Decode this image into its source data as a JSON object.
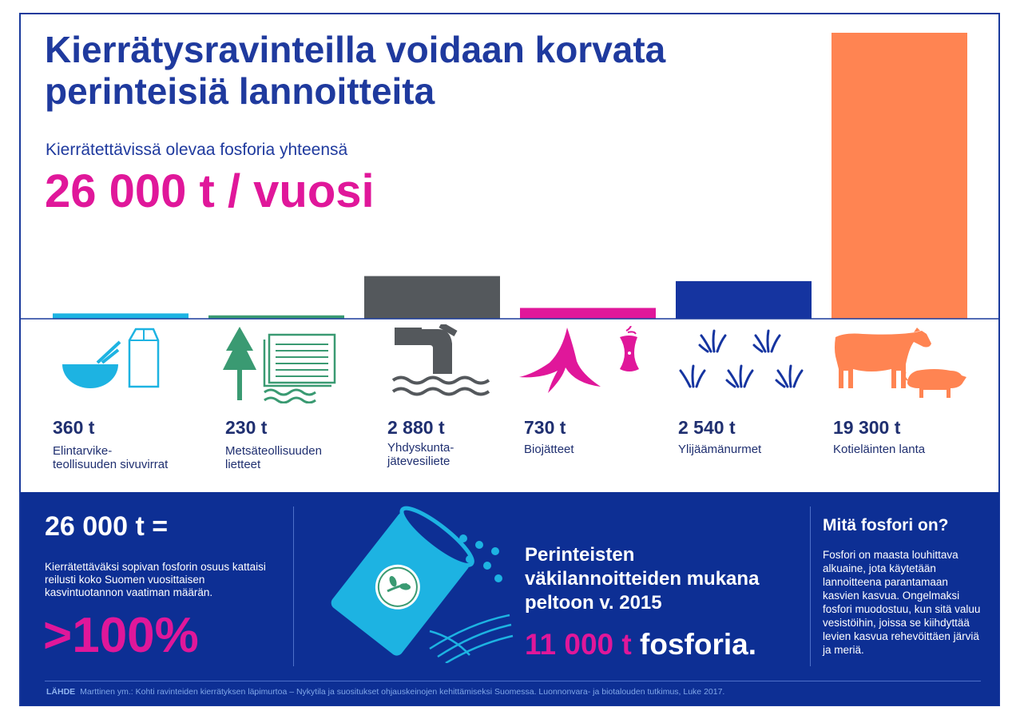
{
  "title": "Kierrätysravinteilla voidaan korvata perinteisiä lannoitteita",
  "subtitle": "Kierrätettävissä olevaa fosforia yhteensä",
  "total": "26 000 t / vuosi",
  "chart_data": {
    "type": "bar",
    "unit": "t",
    "categories": [
      "Elintarvike-teollisuuden sivuvirrat",
      "Metsäteollisuuden lietteet",
      "Yhdyskunta-jätevesiliete",
      "Biojätteet",
      "Ylijäämänurmet",
      "Kotieläinten lanta"
    ],
    "values": [
      360,
      230,
      2880,
      730,
      2540,
      19300
    ],
    "value_labels": [
      "360 t",
      "230 t",
      "2 880 t",
      "730 t",
      "2 540 t",
      "19 300 t"
    ],
    "colors": [
      "#1db3e2",
      "#3a9a72",
      "#54585c",
      "#e0179a",
      "#1534a0",
      "#ff8452"
    ],
    "ylim": [
      0,
      19300
    ]
  },
  "items": [
    {
      "value": "360 t",
      "label": "Elintarvike-\nteollisuuden sivuvirrat"
    },
    {
      "value": "230 t",
      "label": "Metsäteollisuuden\nlietteet"
    },
    {
      "value": "2 880 t",
      "label": "Yhdyskunta-\njätevesiliete"
    },
    {
      "value": "730 t",
      "label": "Biojätteet"
    },
    {
      "value": "2 540 t",
      "label": "Ylijäämänurmet"
    },
    {
      "value": "19 300 t",
      "label": "Kotieläinten lanta"
    }
  ],
  "panel": {
    "left_heading": "26 000 t =",
    "left_text": "Kierrätettäväksi sopivan fosforin osuus kattaisi reilusti koko Suomen vuosittaisen kasvintuotannon vaatiman määrän.",
    "left_big": ">100%",
    "mid_text": "Perinteisten väkilannoitteiden mukana peltoon v. 2015",
    "mid_amount": "11 000 t",
    "mid_amount_suffix": "fosforia.",
    "right_heading": "Mitä fosfori on?",
    "right_text": "Fosfori on maasta louhittava alkuaine, jota käytetään lannoitteena parantamaan kasvien kasvua. Ongelmaksi fosfori muodostuu, kun sitä valuu vesistöihin, joissa se kiihdyttää levien kasvua rehevöittäen järviä ja meriä."
  },
  "source": {
    "label": "LÄHDE",
    "text": "Marttinen ym.: Kohti ravinteiden kierrätyksen läpimurtoa – Nykytila ja suositukset ohjauskeinojen kehittämiseksi Suomessa. Luonnonvara- ja biotalouden tutkimus, Luke 2017."
  }
}
